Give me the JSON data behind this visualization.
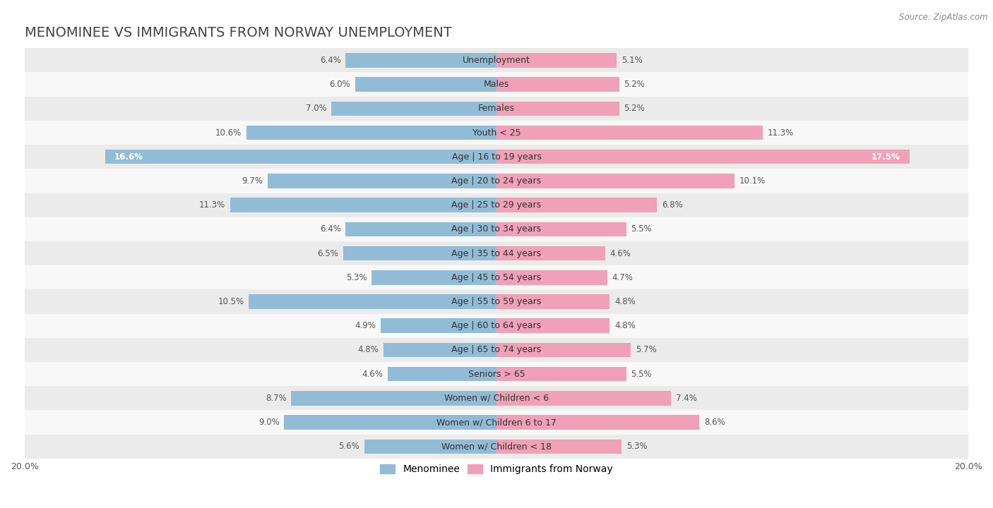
{
  "title": "MENOMINEE VS IMMIGRANTS FROM NORWAY UNEMPLOYMENT",
  "source": "Source: ZipAtlas.com",
  "categories": [
    "Unemployment",
    "Males",
    "Females",
    "Youth < 25",
    "Age | 16 to 19 years",
    "Age | 20 to 24 years",
    "Age | 25 to 29 years",
    "Age | 30 to 34 years",
    "Age | 35 to 44 years",
    "Age | 45 to 54 years",
    "Age | 55 to 59 years",
    "Age | 60 to 64 years",
    "Age | 65 to 74 years",
    "Seniors > 65",
    "Women w/ Children < 6",
    "Women w/ Children 6 to 17",
    "Women w/ Children < 18"
  ],
  "menominee": [
    6.4,
    6.0,
    7.0,
    10.6,
    16.6,
    9.7,
    11.3,
    6.4,
    6.5,
    5.3,
    10.5,
    4.9,
    4.8,
    4.6,
    8.7,
    9.0,
    5.6
  ],
  "norway": [
    5.1,
    5.2,
    5.2,
    11.3,
    17.5,
    10.1,
    6.8,
    5.5,
    4.6,
    4.7,
    4.8,
    4.8,
    5.7,
    5.5,
    7.4,
    8.6,
    5.3
  ],
  "menominee_color": "#92bcd6",
  "norway_color": "#f0a0b8",
  "bg_row_even": "#ebebeb",
  "bg_row_odd": "#f8f8f8",
  "axis_max": 20.0,
  "bar_height": 0.6,
  "title_fontsize": 14,
  "label_fontsize": 9,
  "value_fontsize": 8.5,
  "legend_fontsize": 10
}
